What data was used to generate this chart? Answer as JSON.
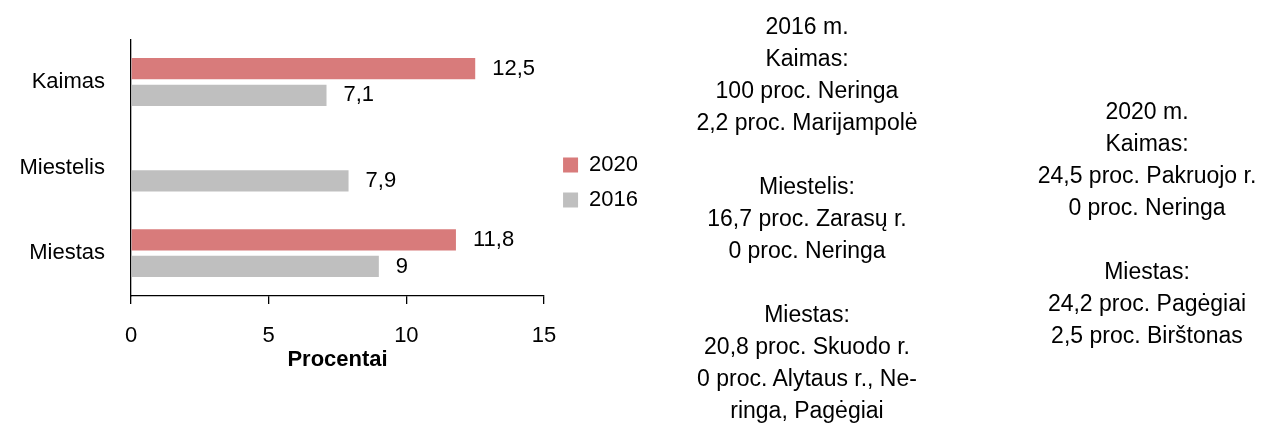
{
  "chart_data": {
    "type": "bar",
    "orientation": "horizontal",
    "categories": [
      "Kaimas",
      "Miestelis",
      "Miestas"
    ],
    "series": [
      {
        "name": "2020",
        "color": "#d87b7b",
        "values": [
          12.5,
          null,
          11.8
        ],
        "value_labels": [
          "12,5",
          null,
          "11,8"
        ]
      },
      {
        "name": "2016",
        "color": "#bfbfbf",
        "values": [
          7.1,
          7.9,
          9
        ],
        "value_labels": [
          "7,1",
          "7,9",
          "9"
        ]
      }
    ],
    "xlabel": "Procentai",
    "xlim": [
      0,
      15
    ],
    "xticks": [
      0,
      5,
      10,
      15
    ],
    "grid": false,
    "legend": "right",
    "annotations": [
      "2016 m.\nKaimas:\n100 proc. Neringa\n2,2 proc. Marijampolė\n\nMiestelis:\n16,7 proc. Zarasų r.\n0 proc. Neringa\n\nMiestas:\n20,8 proc. Skuodo r.\n0 proc. Alytaus r., Ne-\nringa, Pagėgiai",
      "2020 m.\nKaimas:\n24,5 proc. Pakruojo r.\n0 proc. Neringa\n\nMiestas:\n24,2 proc. Pagėgiai\n2,5 proc. Birštonas"
    ]
  }
}
